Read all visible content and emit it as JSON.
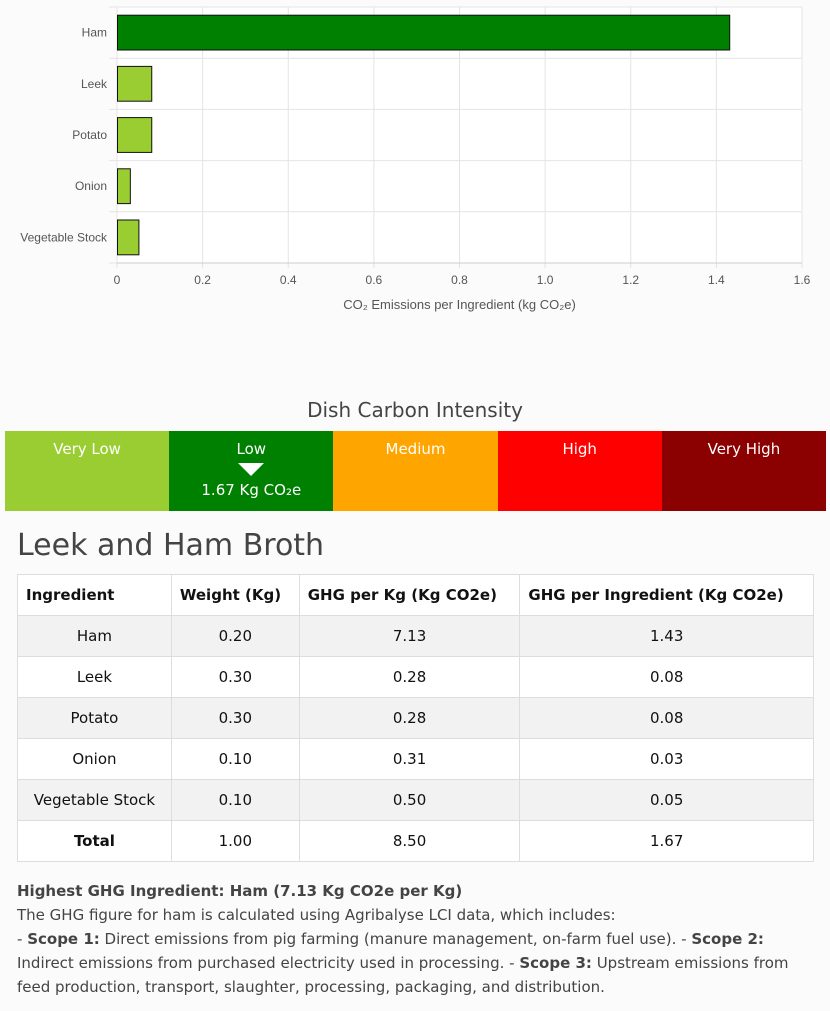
{
  "chart_data": {
    "type": "bar",
    "orientation": "horizontal",
    "categories": [
      "Ham",
      "Leek",
      "Potato",
      "Onion",
      "Vegetable Stock"
    ],
    "values": [
      1.43,
      0.08,
      0.08,
      0.03,
      0.05
    ],
    "colors": [
      "#008000",
      "#9acd32",
      "#9acd32",
      "#9acd32",
      "#9acd32"
    ],
    "xlabel": "CO₂ Emissions per Ingredient (kg CO₂e)",
    "ylabel": "",
    "xlim": [
      0,
      1.6
    ],
    "xticks": [
      "0",
      "0.2",
      "0.4",
      "0.6",
      "0.8",
      "1.0",
      "1.2",
      "1.4",
      "1.6"
    ],
    "grid": true
  },
  "intensity": {
    "title": "Dish Carbon Intensity",
    "bands": [
      {
        "label": "Very Low",
        "color": "#9acd32"
      },
      {
        "label": "Low",
        "color": "#008000"
      },
      {
        "label": "Medium",
        "color": "#ffa500"
      },
      {
        "label": "High",
        "color": "#ff0000"
      },
      {
        "label": "Very High",
        "color": "#8b0000"
      }
    ],
    "active_band": 1,
    "value_label": "1.67 Kg CO₂e"
  },
  "dish": {
    "title": "Leek and Ham Broth",
    "headers": [
      "Ingredient",
      "Weight (Kg)",
      "GHG per Kg (Kg CO2e)",
      "GHG per Ingredient (Kg CO2e)"
    ],
    "rows": [
      [
        "Ham",
        "0.20",
        "7.13",
        "1.43"
      ],
      [
        "Leek",
        "0.30",
        "0.28",
        "0.08"
      ],
      [
        "Potato",
        "0.30",
        "0.28",
        "0.08"
      ],
      [
        "Onion",
        "0.10",
        "0.31",
        "0.03"
      ],
      [
        "Vegetable Stock",
        "0.10",
        "0.50",
        "0.05"
      ]
    ],
    "total": [
      "Total",
      "1.00",
      "8.50",
      "1.67"
    ]
  },
  "note": {
    "heading": "Highest GHG Ingredient: Ham (7.13 Kg CO2e per Kg)",
    "intro": "The GHG figure for ham is calculated using Agribalyse LCI data, which includes:",
    "scope1_label": "Scope 1:",
    "scope1_text": " Direct emissions from pig farming (manure management, on-farm fuel use). - ",
    "scope2_label": "Scope 2:",
    "scope2_text": " Indirect emissions from purchased electricity used in processing. - ",
    "scope3_label": "Scope 3:",
    "scope3_text": " Upstream emissions from feed production, transport, slaughter, processing, packaging, and distribution."
  }
}
